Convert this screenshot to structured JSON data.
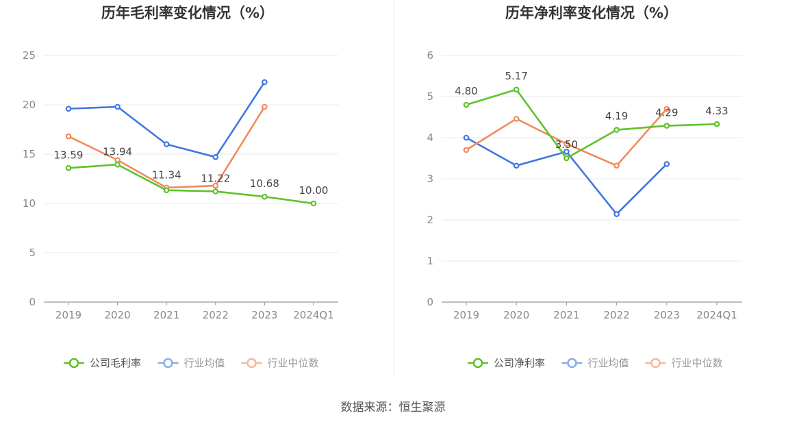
{
  "source": "数据来源：恒生聚源",
  "colors": {
    "company": "#5ec22a",
    "industry_avg": "#3f77df",
    "industry_median": "#f08a5d"
  },
  "chart_data": [
    {
      "type": "line",
      "title": "历年毛利率变化情况（%）",
      "categories": [
        "2019",
        "2020",
        "2021",
        "2022",
        "2023",
        "2024Q1"
      ],
      "ylim": [
        0,
        25
      ],
      "yticks": [
        0,
        5,
        10,
        15,
        20,
        25
      ],
      "grid": true,
      "legend_position": "bottom",
      "series": [
        {
          "name": "公司毛利率",
          "key": "company",
          "values": [
            13.59,
            13.94,
            11.34,
            11.22,
            10.68,
            10.0
          ],
          "labels": [
            "13.59",
            "13.94",
            "11.34",
            "11.22",
            "10.68",
            "10.00"
          ]
        },
        {
          "name": "行业均值",
          "key": "industry_avg",
          "values": [
            19.6,
            19.8,
            16.0,
            14.7,
            22.3,
            null
          ]
        },
        {
          "name": "行业中位数",
          "key": "industry_median",
          "values": [
            16.8,
            14.4,
            11.6,
            11.8,
            19.8,
            null
          ]
        }
      ]
    },
    {
      "type": "line",
      "title": "历年净利率变化情况（%）",
      "categories": [
        "2019",
        "2020",
        "2021",
        "2022",
        "2023",
        "2024Q1"
      ],
      "ylim": [
        0,
        6
      ],
      "yticks": [
        0,
        1,
        2,
        3,
        4,
        5,
        6
      ],
      "grid": true,
      "legend_position": "bottom",
      "series": [
        {
          "name": "公司净利率",
          "key": "company",
          "values": [
            4.8,
            5.17,
            3.5,
            4.19,
            4.29,
            4.33
          ],
          "labels": [
            "4.80",
            "5.17",
            "3.50",
            "4.19",
            "4.29",
            "4.33"
          ]
        },
        {
          "name": "行业均值",
          "key": "industry_avg",
          "values": [
            4.0,
            3.32,
            3.66,
            2.14,
            3.36,
            null
          ]
        },
        {
          "name": "行业中位数",
          "key": "industry_median",
          "values": [
            3.7,
            4.46,
            3.85,
            3.32,
            4.7,
            null
          ]
        }
      ]
    }
  ]
}
